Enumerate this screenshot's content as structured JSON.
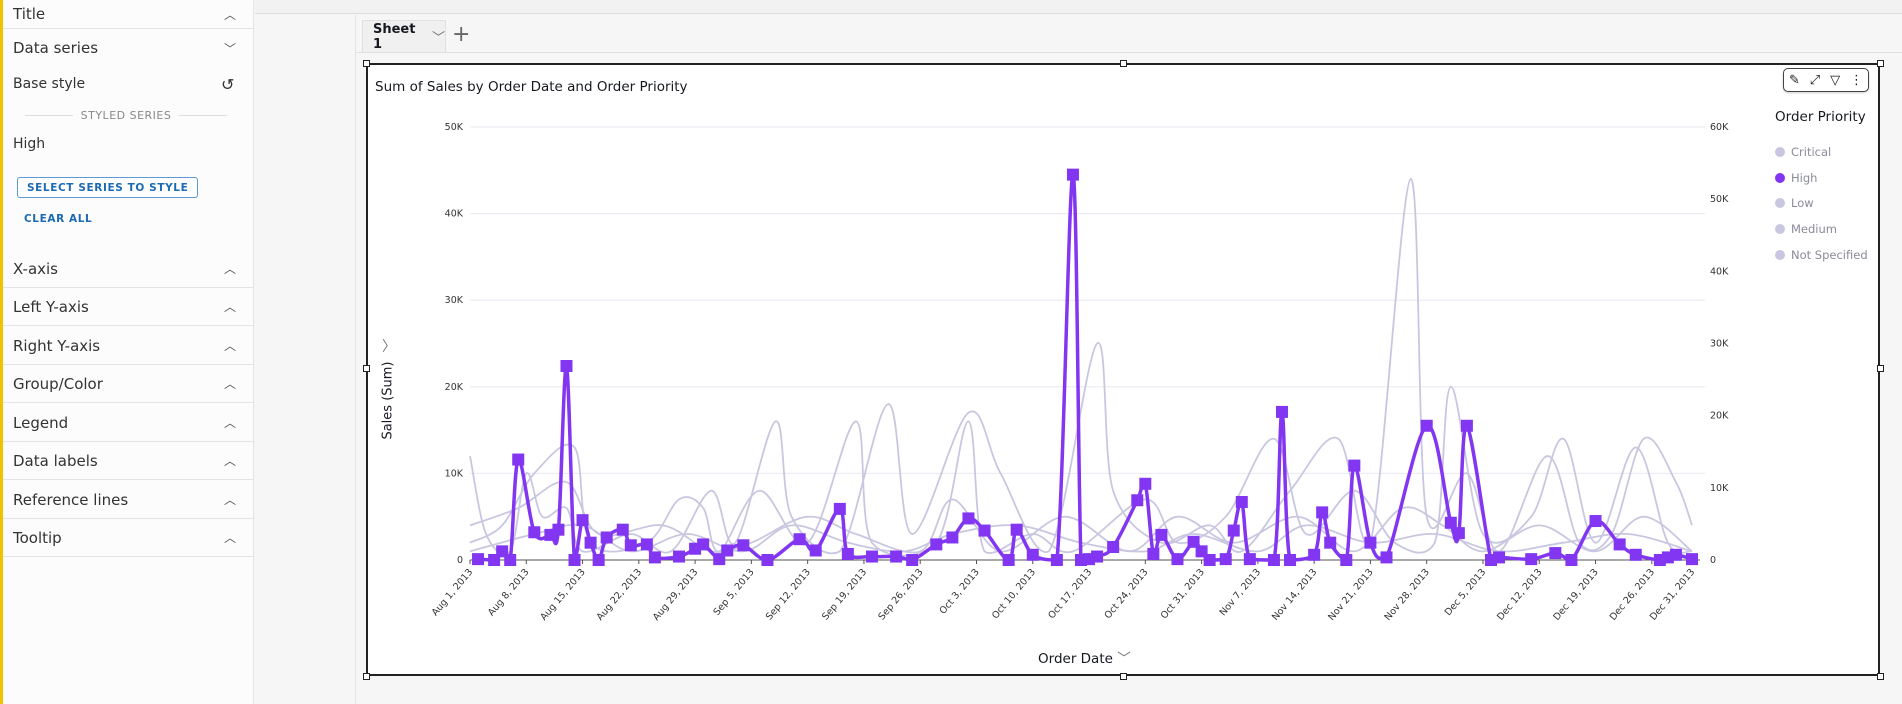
{
  "sidebar": {
    "title": "Title",
    "data_series": "Data series",
    "base_style": "Base style",
    "styled_series": "STYLED SERIES",
    "styled_item": "High",
    "select_btn": "SELECT SERIES TO STYLE",
    "clear_all": "CLEAR ALL",
    "sections": [
      "X-axis",
      "Left Y-axis",
      "Right Y-axis",
      "Group/Color",
      "Legend",
      "Data labels",
      "Reference lines",
      "Tooltip"
    ]
  },
  "sheet": {
    "tab": "Sheet 1",
    "add": "+"
  },
  "visual": {
    "title": "Sum of Sales by Order Date and Order Priority",
    "toolbar": [
      "pencil-icon",
      "expand-icon",
      "filter-icon",
      "more-icon"
    ]
  },
  "chart_data": {
    "type": "line",
    "title": "Sum of Sales by Order Date and Order Priority",
    "xlabel": "Order Date",
    "ylabel": "Sales (Sum)",
    "x_start": "Aug 1, 2013",
    "x_end": "Dec 31, 2013",
    "ylim": [
      0,
      50000
    ],
    "y_ticks": [
      "0",
      "10K",
      "20K",
      "30K",
      "40K",
      "50K"
    ],
    "y2lim": [
      0,
      60000
    ],
    "y2_ticks": [
      "0",
      "10K",
      "20K",
      "30K",
      "40K",
      "50K",
      "60K"
    ],
    "x_ticks": [
      {
        "label": "Aug 1, 2013",
        "day": 0
      },
      {
        "label": "Aug 8, 2013",
        "day": 7
      },
      {
        "label": "Aug 15, 2013",
        "day": 14
      },
      {
        "label": "Aug 22, 2013",
        "day": 21
      },
      {
        "label": "Aug 29, 2013",
        "day": 28
      },
      {
        "label": "Sep 5, 2013",
        "day": 35
      },
      {
        "label": "Sep 12, 2013",
        "day": 42
      },
      {
        "label": "Sep 19, 2013",
        "day": 49
      },
      {
        "label": "Sep 26, 2013",
        "day": 56
      },
      {
        "label": "Oct 3, 2013",
        "day": 63
      },
      {
        "label": "Oct 10, 2013",
        "day": 70
      },
      {
        "label": "Oct 17, 2013",
        "day": 77
      },
      {
        "label": "Oct 24, 2013",
        "day": 84
      },
      {
        "label": "Oct 31, 2013",
        "day": 91
      },
      {
        "label": "Nov 7, 2013",
        "day": 98
      },
      {
        "label": "Nov 14, 2013",
        "day": 105
      },
      {
        "label": "Nov 21, 2013",
        "day": 112
      },
      {
        "label": "Nov 28, 2013",
        "day": 119
      },
      {
        "label": "Dec 5, 2013",
        "day": 126
      },
      {
        "label": "Dec 12, 2013",
        "day": 133
      },
      {
        "label": "Dec 19, 2013",
        "day": 140
      },
      {
        "label": "Dec 26, 2013",
        "day": 147
      },
      {
        "label": "Dec 31, 2013",
        "day": 152
      }
    ],
    "legend_title": "Order Priority",
    "legend_position": "right",
    "colors": {
      "highlight": "#8236f2",
      "muted": "#c9c7e0"
    },
    "series": [
      {
        "name": "Critical",
        "highlight": false,
        "points": [
          [
            0,
            12000
          ],
          [
            2,
            3000
          ],
          [
            5,
            1000
          ],
          [
            7,
            10000
          ],
          [
            9,
            5000
          ],
          [
            12,
            6000
          ],
          [
            14,
            1000
          ],
          [
            20,
            3000
          ],
          [
            25,
            1000
          ],
          [
            30,
            8000
          ],
          [
            33,
            2000
          ],
          [
            38,
            16000
          ],
          [
            40,
            5000
          ],
          [
            46,
            1000
          ],
          [
            52,
            18000
          ],
          [
            55,
            3000
          ],
          [
            62,
            17000
          ],
          [
            66,
            10000
          ],
          [
            72,
            1000
          ],
          [
            78,
            25000
          ],
          [
            80,
            8000
          ],
          [
            86,
            2000
          ],
          [
            92,
            4000
          ],
          [
            96,
            1000
          ],
          [
            102,
            8000
          ],
          [
            108,
            14000
          ],
          [
            112,
            2000
          ],
          [
            117,
            44000
          ],
          [
            119,
            5000
          ],
          [
            124,
            10000
          ],
          [
            128,
            1000
          ],
          [
            134,
            12000
          ],
          [
            138,
            2000
          ],
          [
            142,
            3000
          ],
          [
            146,
            14000
          ],
          [
            150,
            9000
          ],
          [
            152,
            4000
          ]
        ]
      },
      {
        "name": "High",
        "highlight": true,
        "points": [
          [
            1,
            100
          ],
          [
            3,
            0
          ],
          [
            4,
            1000
          ],
          [
            5,
            0
          ],
          [
            6,
            11600
          ],
          [
            8,
            3200
          ],
          [
            10,
            2900
          ],
          [
            11,
            3500
          ],
          [
            12,
            22400
          ],
          [
            13,
            0
          ],
          [
            14,
            4600
          ],
          [
            15,
            2000
          ],
          [
            16,
            0
          ],
          [
            17,
            2600
          ],
          [
            19,
            3500
          ],
          [
            20,
            1700
          ],
          [
            22,
            1800
          ],
          [
            23,
            300
          ],
          [
            26,
            400
          ],
          [
            28,
            1300
          ],
          [
            29,
            1800
          ],
          [
            31,
            100
          ],
          [
            32,
            1100
          ],
          [
            34,
            1700
          ],
          [
            37,
            0
          ],
          [
            41,
            2400
          ],
          [
            43,
            1100
          ],
          [
            46,
            5900
          ],
          [
            47,
            700
          ],
          [
            50,
            400
          ],
          [
            53,
            400
          ],
          [
            55,
            0
          ],
          [
            58,
            1800
          ],
          [
            60,
            2600
          ],
          [
            62,
            4800
          ],
          [
            64,
            3400
          ],
          [
            67,
            0
          ],
          [
            68,
            3500
          ],
          [
            70,
            600
          ],
          [
            73,
            0
          ],
          [
            75,
            44500
          ],
          [
            76,
            0
          ],
          [
            77,
            100
          ],
          [
            78,
            400
          ],
          [
            80,
            1500
          ],
          [
            83,
            6900
          ],
          [
            84,
            8800
          ],
          [
            85,
            700
          ],
          [
            86,
            2900
          ],
          [
            88,
            100
          ],
          [
            90,
            2100
          ],
          [
            91,
            1000
          ],
          [
            92,
            0
          ],
          [
            94,
            100
          ],
          [
            95,
            3400
          ],
          [
            96,
            6700
          ],
          [
            97,
            100
          ],
          [
            100,
            0
          ],
          [
            101,
            17100
          ],
          [
            102,
            0
          ],
          [
            105,
            600
          ],
          [
            106,
            5500
          ],
          [
            107,
            2000
          ],
          [
            109,
            0
          ],
          [
            110,
            10900
          ],
          [
            112,
            2000
          ],
          [
            114,
            300
          ],
          [
            119,
            15500
          ],
          [
            122,
            4300
          ],
          [
            123,
            3100
          ],
          [
            124,
            15500
          ],
          [
            127,
            0
          ],
          [
            128,
            300
          ],
          [
            132,
            100
          ],
          [
            135,
            800
          ],
          [
            137,
            0
          ],
          [
            140,
            4500
          ],
          [
            143,
            1800
          ],
          [
            145,
            600
          ],
          [
            148,
            0
          ],
          [
            149,
            300
          ],
          [
            150,
            600
          ],
          [
            152,
            100
          ]
        ]
      },
      {
        "name": "Low",
        "highlight": false,
        "points": [
          [
            0,
            2000
          ],
          [
            4,
            4000
          ],
          [
            8,
            10000
          ],
          [
            13,
            13000
          ],
          [
            15,
            2000
          ],
          [
            22,
            2000
          ],
          [
            26,
            7000
          ],
          [
            29,
            6000
          ],
          [
            31,
            1000
          ],
          [
            36,
            8000
          ],
          [
            42,
            2000
          ],
          [
            48,
            16000
          ],
          [
            50,
            2000
          ],
          [
            58,
            2000
          ],
          [
            62,
            16000
          ],
          [
            64,
            1000
          ],
          [
            70,
            3000
          ],
          [
            75,
            1000
          ],
          [
            84,
            7000
          ],
          [
            88,
            2000
          ],
          [
            94,
            5000
          ],
          [
            100,
            14000
          ],
          [
            104,
            3000
          ],
          [
            110,
            8000
          ],
          [
            115,
            2000
          ],
          [
            120,
            2000
          ],
          [
            122,
            20000
          ],
          [
            126,
            3000
          ],
          [
            132,
            5000
          ],
          [
            136,
            14000
          ],
          [
            140,
            2000
          ],
          [
            145,
            13000
          ],
          [
            149,
            2000
          ],
          [
            152,
            1000
          ]
        ]
      },
      {
        "name": "Medium",
        "highlight": false,
        "points": [
          [
            0,
            4000
          ],
          [
            6,
            6000
          ],
          [
            12,
            9000
          ],
          [
            16,
            3000
          ],
          [
            24,
            4000
          ],
          [
            30,
            1000
          ],
          [
            35,
            2000
          ],
          [
            42,
            5000
          ],
          [
            48,
            3000
          ],
          [
            56,
            1000
          ],
          [
            60,
            7000
          ],
          [
            66,
            1000
          ],
          [
            74,
            5000
          ],
          [
            82,
            1000
          ],
          [
            88,
            5000
          ],
          [
            95,
            2000
          ],
          [
            103,
            5000
          ],
          [
            110,
            1000
          ],
          [
            116,
            6000
          ],
          [
            121,
            4000
          ],
          [
            126,
            1000
          ],
          [
            133,
            4000
          ],
          [
            140,
            1000
          ],
          [
            146,
            5000
          ],
          [
            152,
            1000
          ]
        ]
      },
      {
        "name": "Not Specified",
        "highlight": false,
        "points": [
          [
            0,
            1000
          ],
          [
            8,
            3000
          ],
          [
            14,
            4000
          ],
          [
            20,
            1000
          ],
          [
            27,
            3000
          ],
          [
            34,
            1000
          ],
          [
            40,
            4000
          ],
          [
            47,
            2000
          ],
          [
            54,
            1000
          ],
          [
            60,
            3000
          ],
          [
            68,
            4000
          ],
          [
            76,
            2000
          ],
          [
            84,
            1000
          ],
          [
            90,
            3000
          ],
          [
            98,
            1000
          ],
          [
            104,
            4000
          ],
          [
            112,
            2000
          ],
          [
            120,
            3000
          ],
          [
            128,
            1000
          ],
          [
            136,
            2000
          ],
          [
            144,
            3000
          ],
          [
            152,
            1000
          ]
        ]
      }
    ]
  }
}
